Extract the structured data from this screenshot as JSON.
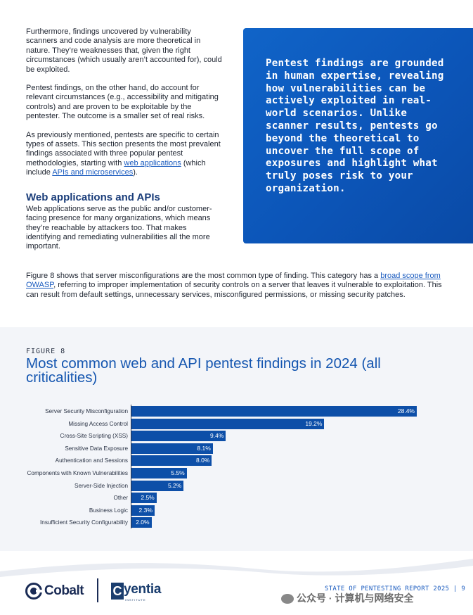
{
  "left_column": {
    "p1": "Furthermore, findings uncovered by vulnerability scanners and code analysis are more theoretical in nature. They’re weaknesses that, given the right circumstances (which usually aren’t accounted for), could be exploited.",
    "p2": "Pentest findings, on the other hand, do account for relevant circumstances (e.g., accessibility and mitigating controls) and are proven to be exploitable by the pentester. The outcome is a smaller set of real risks.",
    "p3_start": "As previously mentioned, pentests are specific to certain types of assets. This section presents the most prevalent findings associated with three popular pentest methodologies, starting with ",
    "p3_link1": "web applications",
    "p3_mid": " (which include ",
    "p3_link2": "APIs and microservices",
    "p3_end": ").",
    "heading": "Web applications and APIs",
    "p4": "Web applications serve as the public and/or customer-facing presence for many organizations, which means they’re reachable by attackers too. That makes identifying and remediating vulnerabilities all the more important."
  },
  "callout": {
    "text": "Pentest findings are grounded in human expertise, revealing how vulnerabilities can be actively exploited in real-world scenarios. Unlike scanner results, pentests go beyond the theoretical to uncover the full scope of exposures and highlight what truly poses risk to your organization."
  },
  "full_paragraph": {
    "start": "Figure 8 shows that server misconfigurations are the most common type of finding. This category has a ",
    "link": "broad scope from OWASP",
    "end": ", referring to improper implementation of security controls on a server that leaves it vulnerable to exploitation. This can result from default settings, unnecessary services, misconfigured permissions, or missing security patches."
  },
  "figure": {
    "label": "FIGURE 8",
    "title": "Most common web and API pentest findings in 2024 (all criticalities)"
  },
  "chart_data": {
    "type": "bar",
    "orientation": "horizontal",
    "categories": [
      "Server Security Misconfiguration",
      "Missing Access Control",
      "Cross-Site Scripting (XSS)",
      "Sensitive Data Exposure",
      "Authentication and Sessions",
      "Components with Known Vulnerabilities",
      "Server-Side Injection",
      "Other",
      "Business Logic",
      "Insufficient Security Configurability"
    ],
    "values": [
      28.4,
      19.2,
      9.4,
      8.1,
      8.0,
      5.5,
      5.2,
      2.5,
      2.3,
      2.0
    ],
    "value_labels": [
      "28.4%",
      "19.2%",
      "9.4%",
      "8.1%",
      "8.0%",
      "5.5%",
      "5.2%",
      "2.5%",
      "2.3%",
      "2.0%"
    ],
    "xlim": [
      0,
      28.4
    ],
    "bar_color": "#0d4fa8",
    "grid": false
  },
  "footer": {
    "cobalt": "Cobalt",
    "cyentia_rest": "yentia",
    "cyentia_box": "C",
    "cyentia_sub": "INSTITUTE",
    "page_label": "STATE OF PENTESTING REPORT 2025 | 9",
    "watermark": "公众号 · 计算机与网络安全"
  },
  "colors": {
    "accent": "#1556b0",
    "callout_bg": "#0c55b8",
    "link": "#1a5bbf"
  }
}
